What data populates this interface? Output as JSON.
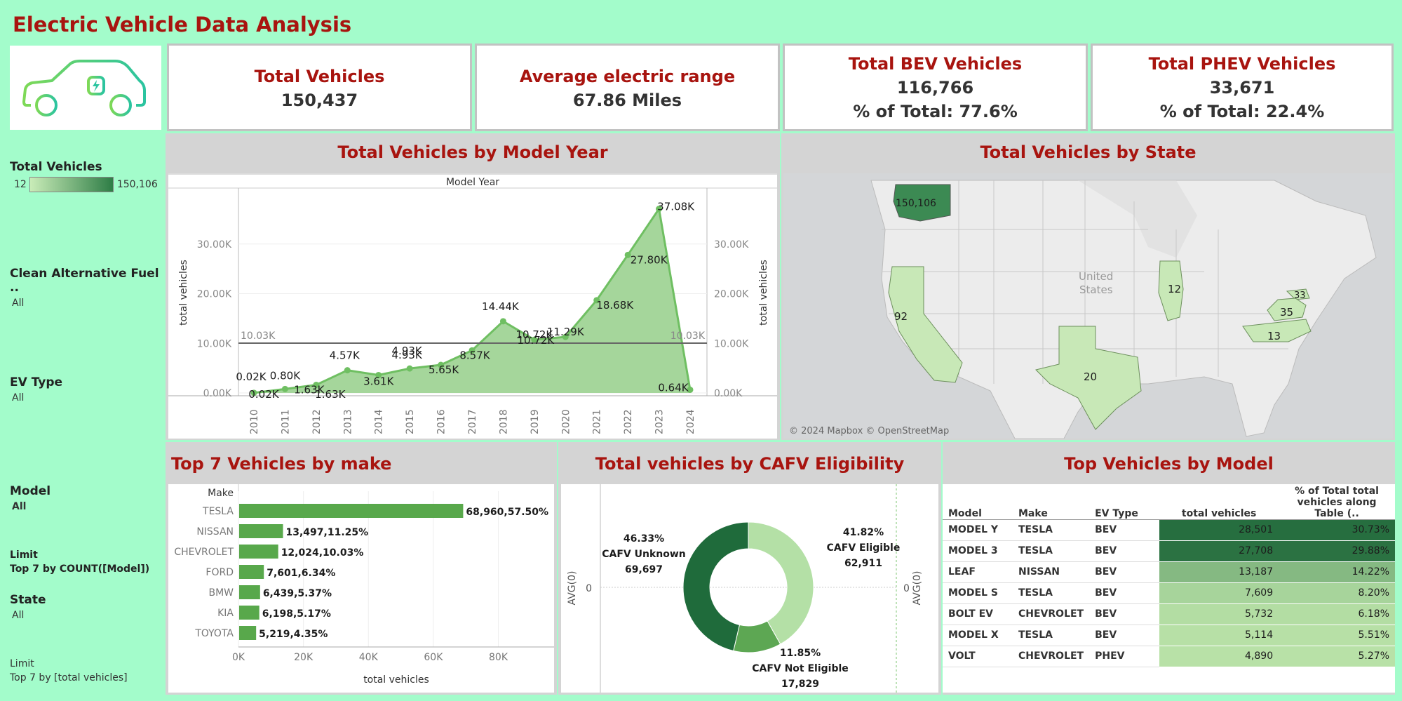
{
  "title": "Electric Vehicle Data Analysis",
  "kpis": {
    "total_vehicles": {
      "label": "Total Vehicles",
      "value": "150,437"
    },
    "avg_range": {
      "label": "Average electric range",
      "value": "67.86 Miles"
    },
    "bev": {
      "label": "Total BEV Vehicles",
      "value": "116,766",
      "pct": "% of Total: 77.6%"
    },
    "phev": {
      "label": "Total PHEV Vehicles",
      "value": "33,671",
      "pct": "% of Total: 22.4%"
    }
  },
  "filters": {
    "legend_title": "Total Vehicles",
    "legend_min": "12",
    "legend_max": "150,106",
    "cafv_label": "Clean Alternative Fuel ..",
    "cafv_value": "All",
    "ev_type_label": "EV Type",
    "ev_type_value": "All",
    "model_label": "Model",
    "model_value": "All",
    "limit1_label": "Limit",
    "limit1_value": "Top 7 by COUNT([Model])",
    "state_label": "State",
    "state_value": "All",
    "limit2_label": "Limit",
    "limit2_value": "Top 7 by [total vehicles]"
  },
  "colors": {
    "accent_red": "#a8140f",
    "bg": "#a3fccb",
    "area": "#8fcf83",
    "bar": "#58a84b"
  },
  "sections": {
    "year": "Total Vehicles by Model Year",
    "state": "Total Vehicles by State",
    "make": "Top 7 Vehicles by make",
    "cafv": "Total vehicles by CAFV Eligibility",
    "model": "Top Vehicles by Model"
  },
  "map": {
    "attribution": "© 2024 Mapbox © OpenStreetMap",
    "country_label_1": "United",
    "country_label_2": "States",
    "states": [
      {
        "name": "WA",
        "value": "150,106"
      },
      {
        "name": "CA",
        "value": "92"
      },
      {
        "name": "IL",
        "value": "12"
      },
      {
        "name": "TX",
        "value": "20"
      },
      {
        "name": "MD",
        "value": "33"
      },
      {
        "name": "VA",
        "value": "35"
      },
      {
        "name": "NC",
        "value": "13"
      }
    ]
  },
  "chart_data": [
    {
      "type": "area",
      "header": "Model Year",
      "x": [
        "2010",
        "2011",
        "2012",
        "2013",
        "2014",
        "2015",
        "2016",
        "2017",
        "2018",
        "2019",
        "2020",
        "2021",
        "2022",
        "2023",
        "2024"
      ],
      "values": [
        0.02,
        0.8,
        1.63,
        4.57,
        3.61,
        4.93,
        5.65,
        8.57,
        14.44,
        10.72,
        11.29,
        18.68,
        27.8,
        37.08,
        0.64
      ],
      "labels": [
        "0.02K",
        "0.80K",
        "1.63K",
        "4.57K",
        "3.61K",
        "4.93K",
        "5.65K",
        "8.57K",
        "14.44K",
        "10.72K",
        "11.29K",
        "18.68K",
        "27.80K",
        "37.08K",
        "0.64K"
      ],
      "extra_labels": [
        "0.02K",
        "1.63K",
        "4.93K",
        "10.72K"
      ],
      "reference_line": 10.03,
      "reference_label": "10.03K",
      "ylabel": "total vehicles",
      "yticks": [
        "0.00K",
        "10.00K",
        "20.00K",
        "30.00K"
      ],
      "ylim": [
        0,
        40
      ]
    },
    {
      "type": "bar",
      "header": "Make",
      "categories": [
        "TESLA",
        "NISSAN",
        "CHEVROLET",
        "FORD",
        "BMW",
        "KIA",
        "TOYOTA"
      ],
      "values": [
        68960,
        13497,
        12024,
        7601,
        6439,
        6198,
        5219
      ],
      "labels": [
        "68,960,57.50%",
        "13,497,11.25%",
        "12,024,10.03%",
        "7,601,6.34%",
        "6,439,5.37%",
        "6,198,5.17%",
        "5,219,4.35%"
      ],
      "xlabel": "total vehicles",
      "xticks": [
        "0K",
        "20K",
        "40K",
        "60K",
        "80K"
      ],
      "xlim": [
        0,
        95000
      ]
    },
    {
      "type": "pie",
      "categories": [
        "CAFV Eligible",
        "CAFV Not Eligible",
        "CAFV Unknown"
      ],
      "values": [
        62911,
        17829,
        69697
      ],
      "percents": [
        "41.82%",
        "11.85%",
        "46.33%"
      ],
      "counts": [
        "62,911",
        "17,829",
        "69,697"
      ],
      "axis_label": "AVG(0)",
      "axis_tick": "0"
    },
    {
      "type": "table",
      "columns": [
        "Model",
        "Make",
        "EV Type",
        "total vehicles",
        "% of Total total",
        "vehicles along Table (.."
      ],
      "rows": [
        {
          "model": "MODEL Y",
          "make": "TESLA",
          "type": "BEV",
          "total": "28,501",
          "pct": "30.73%",
          "v": 28501
        },
        {
          "model": "MODEL 3",
          "make": "TESLA",
          "type": "BEV",
          "total": "27,708",
          "pct": "29.88%",
          "v": 27708
        },
        {
          "model": "LEAF",
          "make": "NISSAN",
          "type": "BEV",
          "total": "13,187",
          "pct": "14.22%",
          "v": 13187
        },
        {
          "model": "MODEL S",
          "make": "TESLA",
          "type": "BEV",
          "total": "7,609",
          "pct": "8.20%",
          "v": 7609
        },
        {
          "model": "BOLT EV",
          "make": "CHEVROLET",
          "type": "BEV",
          "total": "5,732",
          "pct": "6.18%",
          "v": 5732
        },
        {
          "model": "MODEL X",
          "make": "TESLA",
          "type": "BEV",
          "total": "5,114",
          "pct": "5.51%",
          "v": 5114
        },
        {
          "model": "VOLT",
          "make": "CHEVROLET",
          "type": "PHEV",
          "total": "4,890",
          "pct": "5.27%",
          "v": 4890
        }
      ]
    }
  ]
}
